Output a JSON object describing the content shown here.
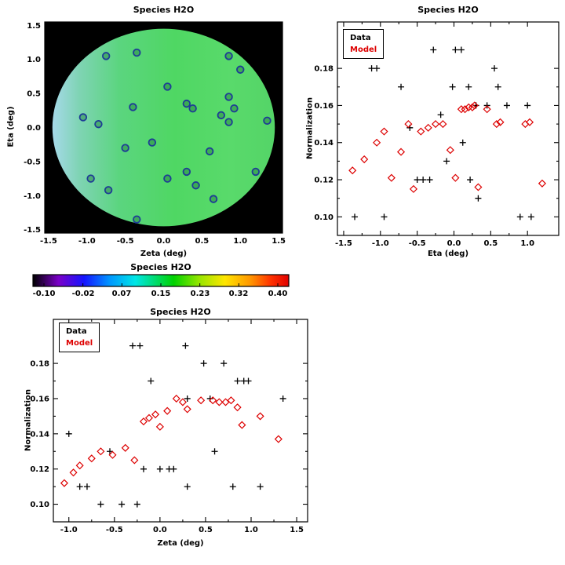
{
  "chart_data": [
    {
      "id": "map",
      "type": "scatter",
      "title": "Species H2O",
      "xlabel": "Zeta (deg)",
      "ylabel": "Eta (deg)",
      "xlim": [
        -1.55,
        1.55
      ],
      "ylim": [
        -1.55,
        1.55
      ],
      "xticks": [
        -1.5,
        -1.0,
        -0.5,
        0.0,
        0.5,
        1.0,
        1.5
      ],
      "xtick_labels": [
        "-1.5",
        "-1.0",
        "-0.5",
        "0.0",
        "0.5",
        "1.0",
        "1.5"
      ],
      "yticks": [
        1.5,
        1.0,
        0.5,
        0.0,
        -0.5,
        -1.0,
        -1.5
      ],
      "ytick_labels": [
        "1.5",
        "1.0",
        "0.5",
        "0.0",
        "-0.5",
        "-1.0",
        "-1.5"
      ],
      "background": "#000000",
      "ellipse": {
        "cx": 0,
        "cy": 0,
        "rx": 1.45,
        "ry": 1.45,
        "gradient": [
          {
            "offset": 0.0,
            "color": "#a6d9e9"
          },
          {
            "offset": 0.12,
            "color": "#7fd4b4"
          },
          {
            "offset": 0.3,
            "color": "#5bd57f"
          },
          {
            "offset": 0.55,
            "color": "#4fd763"
          },
          {
            "offset": 0.8,
            "color": "#59da6b"
          },
          {
            "offset": 1.0,
            "color": "#54d467"
          }
        ]
      },
      "series": [
        {
          "marker": "circle",
          "color": "#1e3c96",
          "fill": "rgba(31,122,60,0.45)",
          "points": [
            [
              -0.75,
              1.05
            ],
            [
              -0.35,
              1.1
            ],
            [
              0.85,
              1.05
            ],
            [
              1.0,
              0.85
            ],
            [
              -1.05,
              0.15
            ],
            [
              -0.85,
              0.05
            ],
            [
              -0.4,
              0.3
            ],
            [
              0.05,
              0.6
            ],
            [
              0.3,
              0.35
            ],
            [
              0.38,
              0.28
            ],
            [
              0.85,
              0.45
            ],
            [
              0.92,
              0.28
            ],
            [
              0.75,
              0.18
            ],
            [
              0.85,
              0.08
            ],
            [
              1.35,
              0.1
            ],
            [
              -0.5,
              -0.3
            ],
            [
              -0.15,
              -0.22
            ],
            [
              0.6,
              -0.35
            ],
            [
              -0.95,
              -0.75
            ],
            [
              -0.72,
              -0.92
            ],
            [
              0.05,
              -0.75
            ],
            [
              0.3,
              -0.65
            ],
            [
              0.42,
              -0.85
            ],
            [
              1.2,
              -0.65
            ],
            [
              0.65,
              -1.05
            ],
            [
              -0.35,
              -1.35
            ]
          ]
        }
      ]
    },
    {
      "id": "eta",
      "type": "scatter",
      "title": "Species H2O",
      "xlabel": "Eta (deg)",
      "ylabel": "Normalization",
      "xlim": [
        -1.585,
        1.425
      ],
      "ylim": [
        0.09,
        0.205
      ],
      "xticks": [
        -1.5,
        -1.0,
        -0.5,
        0.0,
        0.5,
        1.0
      ],
      "xtick_labels": [
        "-1.5",
        "-1.0",
        "-0.5",
        "0.0",
        "0.5",
        "1.0"
      ],
      "yticks": [
        0.18,
        0.16,
        0.14,
        0.12,
        0.1
      ],
      "ytick_labels": [
        "0.18",
        "0.16",
        "0.14",
        "0.12",
        "0.10"
      ],
      "legend": [
        "Data",
        "Model"
      ],
      "series": [
        {
          "name": "Data",
          "marker": "plus",
          "color": "#000000",
          "points": [
            [
              -1.35,
              0.1
            ],
            [
              -1.12,
              0.18
            ],
            [
              -1.05,
              0.18
            ],
            [
              -0.95,
              0.1
            ],
            [
              -0.72,
              0.17
            ],
            [
              -0.6,
              0.148
            ],
            [
              -0.5,
              0.12
            ],
            [
              -0.42,
              0.12
            ],
            [
              -0.33,
              0.12
            ],
            [
              -0.28,
              0.19
            ],
            [
              -0.18,
              0.155
            ],
            [
              -0.1,
              0.13
            ],
            [
              -0.02,
              0.17
            ],
            [
              0.02,
              0.19
            ],
            [
              0.1,
              0.19
            ],
            [
              0.12,
              0.14
            ],
            [
              0.2,
              0.17
            ],
            [
              0.22,
              0.12
            ],
            [
              0.3,
              0.16
            ],
            [
              0.33,
              0.11
            ],
            [
              0.45,
              0.16
            ],
            [
              0.55,
              0.18
            ],
            [
              0.6,
              0.17
            ],
            [
              0.72,
              0.16
            ],
            [
              0.9,
              0.1
            ],
            [
              1.0,
              0.16
            ],
            [
              1.05,
              0.1
            ]
          ]
        },
        {
          "name": "Model",
          "marker": "diamond",
          "color": "#dd0000",
          "points": [
            [
              -1.38,
              0.125
            ],
            [
              -1.22,
              0.131
            ],
            [
              -1.05,
              0.14
            ],
            [
              -0.95,
              0.146
            ],
            [
              -0.85,
              0.121
            ],
            [
              -0.72,
              0.135
            ],
            [
              -0.62,
              0.15
            ],
            [
              -0.55,
              0.115
            ],
            [
              -0.45,
              0.146
            ],
            [
              -0.35,
              0.148
            ],
            [
              -0.25,
              0.15
            ],
            [
              -0.15,
              0.15
            ],
            [
              -0.05,
              0.136
            ],
            [
              0.02,
              0.121
            ],
            [
              0.1,
              0.158
            ],
            [
              0.15,
              0.158
            ],
            [
              0.2,
              0.159
            ],
            [
              0.25,
              0.159
            ],
            [
              0.28,
              0.16
            ],
            [
              0.33,
              0.116
            ],
            [
              0.45,
              0.158
            ],
            [
              0.58,
              0.15
            ],
            [
              0.63,
              0.151
            ],
            [
              0.97,
              0.15
            ],
            [
              1.03,
              0.151
            ],
            [
              1.2,
              0.118
            ]
          ]
        }
      ]
    },
    {
      "id": "colorbar",
      "type": "colorbar",
      "title": "Species H2O",
      "ticks": [
        -0.1,
        -0.02,
        0.07,
        0.15,
        0.23,
        0.32,
        0.4
      ],
      "tick_labels": [
        "-0.10",
        "-0.02",
        "0.07",
        "0.15",
        "0.23",
        "0.32",
        "0.40"
      ],
      "gradient": [
        {
          "offset": 0.0,
          "color": "#000000"
        },
        {
          "offset": 0.1,
          "color": "#7a00c8"
        },
        {
          "offset": 0.2,
          "color": "#1414ff"
        },
        {
          "offset": 0.3,
          "color": "#0096ff"
        },
        {
          "offset": 0.4,
          "color": "#00e6e6"
        },
        {
          "offset": 0.55,
          "color": "#00d200"
        },
        {
          "offset": 0.65,
          "color": "#96e600"
        },
        {
          "offset": 0.75,
          "color": "#ffe600"
        },
        {
          "offset": 0.85,
          "color": "#ff9600"
        },
        {
          "offset": 0.93,
          "color": "#ff3200"
        },
        {
          "offset": 1.0,
          "color": "#e10000"
        }
      ]
    },
    {
      "id": "zeta",
      "type": "scatter",
      "title": "Species H2O",
      "xlabel": "Zeta (deg)",
      "ylabel": "Normalization",
      "xlim": [
        -1.17,
        1.62
      ],
      "ylim": [
        0.09,
        0.205
      ],
      "xticks": [
        -1.0,
        -0.5,
        0.0,
        0.5,
        1.0,
        1.5
      ],
      "xtick_labels": [
        "-1.0",
        "-0.5",
        "0.0",
        "0.5",
        "1.0",
        "1.5"
      ],
      "yticks": [
        0.18,
        0.16,
        0.14,
        0.12,
        0.1
      ],
      "ytick_labels": [
        "0.18",
        "0.16",
        "0.14",
        "0.12",
        "0.10"
      ],
      "legend": [
        "Data",
        "Model"
      ],
      "series": [
        {
          "name": "Data",
          "marker": "plus",
          "color": "#000000",
          "points": [
            [
              -1.0,
              0.14
            ],
            [
              -0.88,
              0.11
            ],
            [
              -0.8,
              0.11
            ],
            [
              -0.65,
              0.1
            ],
            [
              -0.55,
              0.13
            ],
            [
              -0.42,
              0.1
            ],
            [
              -0.3,
              0.19
            ],
            [
              -0.22,
              0.19
            ],
            [
              -0.25,
              0.1
            ],
            [
              -0.18,
              0.12
            ],
            [
              -0.1,
              0.17
            ],
            [
              0.0,
              0.12
            ],
            [
              0.1,
              0.12
            ],
            [
              0.15,
              0.12
            ],
            [
              0.28,
              0.19
            ],
            [
              0.3,
              0.16
            ],
            [
              0.3,
              0.11
            ],
            [
              0.48,
              0.18
            ],
            [
              0.55,
              0.16
            ],
            [
              0.6,
              0.13
            ],
            [
              0.7,
              0.18
            ],
            [
              0.8,
              0.11
            ],
            [
              0.85,
              0.17
            ],
            [
              0.92,
              0.17
            ],
            [
              0.97,
              0.17
            ],
            [
              1.1,
              0.11
            ],
            [
              1.35,
              0.16
            ]
          ]
        },
        {
          "name": "Model",
          "marker": "diamond",
          "color": "#dd0000",
          "points": [
            [
              -1.05,
              0.112
            ],
            [
              -0.95,
              0.118
            ],
            [
              -0.88,
              0.122
            ],
            [
              -0.75,
              0.126
            ],
            [
              -0.65,
              0.13
            ],
            [
              -0.52,
              0.128
            ],
            [
              -0.38,
              0.132
            ],
            [
              -0.28,
              0.125
            ],
            [
              -0.18,
              0.147
            ],
            [
              -0.12,
              0.149
            ],
            [
              -0.05,
              0.151
            ],
            [
              0.0,
              0.144
            ],
            [
              0.08,
              0.153
            ],
            [
              0.18,
              0.16
            ],
            [
              0.25,
              0.158
            ],
            [
              0.3,
              0.154
            ],
            [
              0.45,
              0.159
            ],
            [
              0.58,
              0.159
            ],
            [
              0.65,
              0.158
            ],
            [
              0.72,
              0.158
            ],
            [
              0.78,
              0.159
            ],
            [
              0.85,
              0.155
            ],
            [
              0.9,
              0.145
            ],
            [
              1.1,
              0.15
            ],
            [
              1.3,
              0.137
            ]
          ]
        }
      ]
    }
  ]
}
